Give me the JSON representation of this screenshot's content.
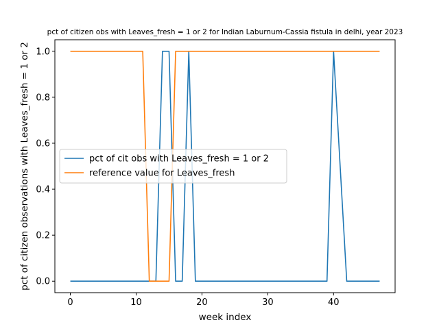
{
  "chart_data": {
    "type": "line",
    "title": "pct of citizen obs with Leaves_fresh = 1 or 2 for Indian Laburnum-Cassia fistula in delhi, year 2023",
    "xlabel": "week index",
    "ylabel": "pct of citizen observations with Leaves_fresh = 1 or 2",
    "xlim": [
      -2.35,
      49.35
    ],
    "ylim": [
      -0.05,
      1.05
    ],
    "xticks": [
      0,
      10,
      20,
      30,
      40
    ],
    "yticks": [
      0.0,
      0.2,
      0.4,
      0.6,
      0.8,
      1.0
    ],
    "xtick_labels": [
      "0",
      "10",
      "20",
      "30",
      "40"
    ],
    "ytick_labels": [
      "0.0",
      "0.2",
      "0.4",
      "0.6",
      "0.8",
      "1.0"
    ],
    "grid": false,
    "legend_position": "center-left",
    "x": [
      0,
      1,
      2,
      3,
      4,
      5,
      6,
      7,
      8,
      9,
      10,
      11,
      12,
      13,
      14,
      15,
      16,
      17,
      18,
      19,
      20,
      21,
      22,
      23,
      24,
      25,
      26,
      27,
      28,
      29,
      30,
      31,
      32,
      33,
      34,
      35,
      36,
      37,
      38,
      39,
      40,
      41,
      42,
      43,
      44,
      45,
      46,
      47
    ],
    "series": [
      {
        "name": "pct of cit obs with Leaves_fresh = 1 or 2",
        "color": "#1f77b4",
        "values": [
          0,
          0,
          0,
          0,
          0,
          0,
          0,
          0,
          0,
          0,
          0,
          0,
          0,
          0,
          1,
          1,
          0,
          0,
          1,
          0,
          0,
          0,
          0,
          0,
          0,
          0,
          0,
          0,
          0,
          0,
          0,
          0,
          0,
          0,
          0,
          0,
          0,
          0,
          0,
          0,
          1,
          0.5,
          0,
          0,
          0,
          0,
          0,
          0
        ]
      },
      {
        "name": "reference value for Leaves_fresh",
        "color": "#ff7f0e",
        "values": [
          1,
          1,
          1,
          1,
          1,
          1,
          1,
          1,
          1,
          1,
          1,
          1,
          0,
          0,
          0,
          0,
          1,
          1,
          1,
          1,
          1,
          1,
          1,
          1,
          1,
          1,
          1,
          1,
          1,
          1,
          1,
          1,
          1,
          1,
          1,
          1,
          1,
          1,
          1,
          1,
          1,
          1,
          1,
          1,
          1,
          1,
          1,
          1
        ]
      }
    ]
  }
}
